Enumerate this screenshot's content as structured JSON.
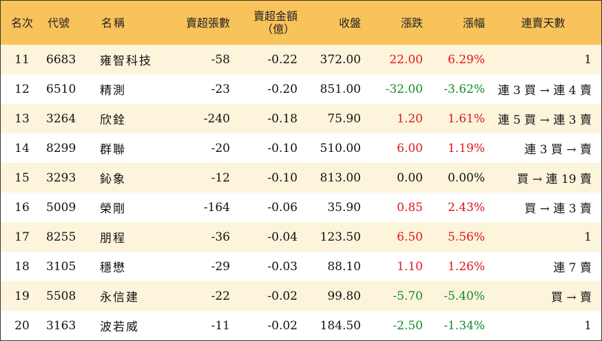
{
  "headers": {
    "rank": "名次",
    "code": "代號",
    "name": "名稱",
    "net_sell_lots": "賣超張數",
    "net_sell_amount_line1": "賣超金額",
    "net_sell_amount_line2": "（億）",
    "close": "收盤",
    "change": "漲跌",
    "change_pct": "漲幅",
    "streak": "連賣天數"
  },
  "rows": [
    {
      "rank": "11",
      "code": "6683",
      "name": "雍智科技",
      "lots": "-58",
      "amount": "-0.22",
      "close": "372.00",
      "change": "22.00",
      "pct": "6.29%",
      "streak": "1",
      "dir": "up"
    },
    {
      "rank": "12",
      "code": "6510",
      "name": "精測",
      "lots": "-23",
      "amount": "-0.20",
      "close": "851.00",
      "change": "-32.00",
      "pct": "-3.62%",
      "streak": "連 3 買 → 連 4 賣",
      "dir": "down"
    },
    {
      "rank": "13",
      "code": "3264",
      "name": "欣銓",
      "lots": "-240",
      "amount": "-0.18",
      "close": "75.90",
      "change": "1.20",
      "pct": "1.61%",
      "streak": "連 5 買 → 連 3 賣",
      "dir": "up"
    },
    {
      "rank": "14",
      "code": "8299",
      "name": "群聯",
      "lots": "-20",
      "amount": "-0.10",
      "close": "510.00",
      "change": "6.00",
      "pct": "1.19%",
      "streak": "連 3 買 → 賣",
      "dir": "up"
    },
    {
      "rank": "15",
      "code": "3293",
      "name": "鈊象",
      "lots": "-12",
      "amount": "-0.10",
      "close": "813.00",
      "change": "0.00",
      "pct": "0.00%",
      "streak": "買 → 連 19 賣",
      "dir": "flat"
    },
    {
      "rank": "16",
      "code": "5009",
      "name": "榮剛",
      "lots": "-164",
      "amount": "-0.06",
      "close": "35.90",
      "change": "0.85",
      "pct": "2.43%",
      "streak": "買 → 連 3 賣",
      "dir": "up"
    },
    {
      "rank": "17",
      "code": "8255",
      "name": "朋程",
      "lots": "-36",
      "amount": "-0.04",
      "close": "123.50",
      "change": "6.50",
      "pct": "5.56%",
      "streak": "1",
      "dir": "up"
    },
    {
      "rank": "18",
      "code": "3105",
      "name": "穩懋",
      "lots": "-29",
      "amount": "-0.03",
      "close": "88.10",
      "change": "1.10",
      "pct": "1.26%",
      "streak": "連 7 賣",
      "dir": "up"
    },
    {
      "rank": "19",
      "code": "5508",
      "name": "永信建",
      "lots": "-22",
      "amount": "-0.02",
      "close": "99.80",
      "change": "-5.70",
      "pct": "-5.40%",
      "streak": "買 → 賣",
      "dir": "down"
    },
    {
      "rank": "20",
      "code": "3163",
      "name": "波若威",
      "lots": "-11",
      "amount": "-0.02",
      "close": "184.50",
      "change": "-2.50",
      "pct": "-1.34%",
      "streak": "1",
      "dir": "down"
    }
  ],
  "colors": {
    "header_bg": "#f9c35c",
    "stripe_bg": "#fdf4dc",
    "up": "#e0151b",
    "down": "#118c2b"
  }
}
